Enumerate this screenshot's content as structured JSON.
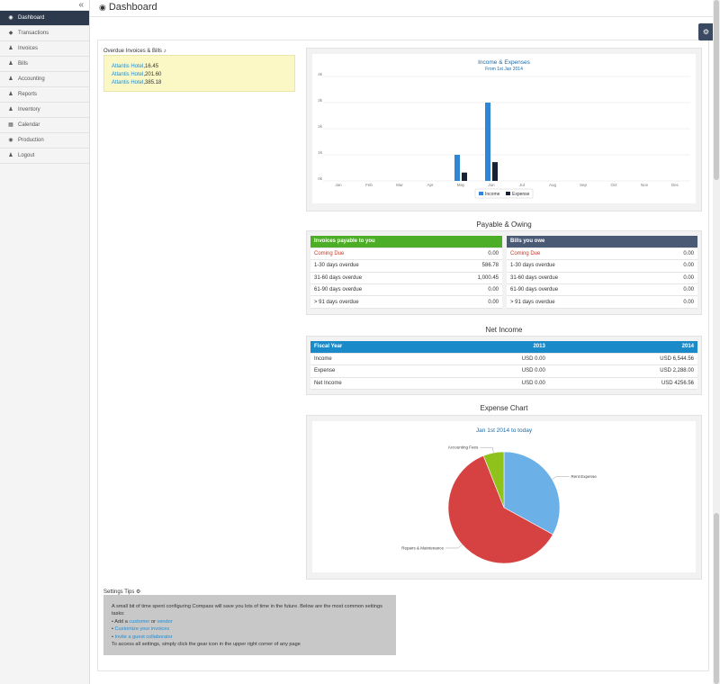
{
  "sidebar": {
    "collapse_glyph": "«",
    "items": [
      {
        "label": "Dashboard",
        "icon": "dashboard-icon"
      },
      {
        "label": "Transactions",
        "icon": "car-icon"
      },
      {
        "label": "Invoices",
        "icon": "person-icon"
      },
      {
        "label": "Bills",
        "icon": "person-icon"
      },
      {
        "label": "Accounting",
        "icon": "person-icon"
      },
      {
        "label": "Reports",
        "icon": "person-icon"
      },
      {
        "label": "Inventory",
        "icon": "person-icon"
      },
      {
        "label": "Calendar",
        "icon": "calendar-icon"
      },
      {
        "label": "Production",
        "icon": "dashboard-icon"
      },
      {
        "label": "Logout",
        "icon": "person-icon"
      }
    ]
  },
  "header": {
    "title": "Dashboard"
  },
  "overdue": {
    "title": "Overdue Invoices & Bills",
    "items": [
      {
        "name": "Atlantis Hotel",
        "amount": "16.45"
      },
      {
        "name": "Atlantis Hotel",
        "amount": "201.60"
      },
      {
        "name": "Atlantis Hotel",
        "amount": "385.18"
      }
    ]
  },
  "chart_data": [
    {
      "type": "bar",
      "title": "Income & Expenses",
      "subtitle": "From 1st Jan 2014",
      "categories": [
        "Jan",
        "Feb",
        "Mar",
        "Apr",
        "May",
        "Jun",
        "Jul",
        "Aug",
        "Sep",
        "Oct",
        "Nov",
        "Dec"
      ],
      "yticks": [
        "0k",
        "1k",
        "2k",
        "3k",
        "4k"
      ],
      "ylim": [
        0,
        4000
      ],
      "series": [
        {
          "name": "Income",
          "color": "#2f86d6",
          "values": [
            0,
            0,
            0,
            0,
            1000,
            3000,
            0,
            0,
            0,
            0,
            0,
            0
          ]
        },
        {
          "name": "Expense",
          "color": "#162235",
          "values": [
            0,
            0,
            0,
            0,
            320,
            720,
            0,
            0,
            0,
            0,
            0,
            0
          ]
        }
      ],
      "grid": true,
      "legend": "bottom"
    },
    {
      "type": "pie",
      "title": "Jan 1st 2014 to today",
      "slices": [
        {
          "label": "Rent Expense",
          "value": 33,
          "color": "#6cb0e8"
        },
        {
          "label": "Repairs & Maintenance",
          "value": 61,
          "color": "#d64242"
        },
        {
          "label": "Accounting Fees",
          "value": 6,
          "color": "#8fc21b"
        }
      ]
    }
  ],
  "payable": {
    "title": "Payable & Owing",
    "left": {
      "header": "Invoices payable to you",
      "rows": [
        {
          "label": "Coming Due",
          "value": "0.00"
        },
        {
          "label": "1-30 days overdue",
          "value": "586.78"
        },
        {
          "label": "31-60 days overdue",
          "value": "1,000.45"
        },
        {
          "label": "61-90 days overdue",
          "value": "0.00"
        },
        {
          "label": "> 91 days overdue",
          "value": "0.00"
        }
      ]
    },
    "right": {
      "header": "Bills you owe",
      "rows": [
        {
          "label": "Coming Due",
          "value": "0.00"
        },
        {
          "label": "1-30 days overdue",
          "value": "0.00"
        },
        {
          "label": "31-60 days overdue",
          "value": "0.00"
        },
        {
          "label": "61-90 days overdue",
          "value": "0.00"
        },
        {
          "label": "> 91 days overdue",
          "value": "0.00"
        }
      ]
    }
  },
  "net_income": {
    "title": "Net Income",
    "headers": [
      "Fiscal Year",
      "2013",
      "2014"
    ],
    "rows": [
      [
        "Income",
        "USD 0.00",
        "USD 6,544.56"
      ],
      [
        "Expense",
        "USD 0.00",
        "USD 2,288.00"
      ],
      [
        "Net Income",
        "USD 0.00",
        "USD 4256.56"
      ]
    ]
  },
  "expense_chart": {
    "title": "Expense Chart"
  },
  "tips": {
    "title": "Settings Tips",
    "intro": "A small bit of time spent configuring Compass will save you lots of time in the future. Below are the most common settings tasks:",
    "add_prefix": "• Add a",
    "customer": "customer",
    "or": "or",
    "vendor": "vendor",
    "customize": "Customize your invoices",
    "invite": "Invite a guest collaborator",
    "outro": "To access all settings, simply click the gear icon in the upper right corner of any page"
  },
  "colors": {
    "sidebar_active": "#2d3a4d",
    "payable_header": "#4cae27",
    "owe_header": "#4a5a75",
    "net_header": "#1a8ac9",
    "link": "#1b8dd8"
  }
}
